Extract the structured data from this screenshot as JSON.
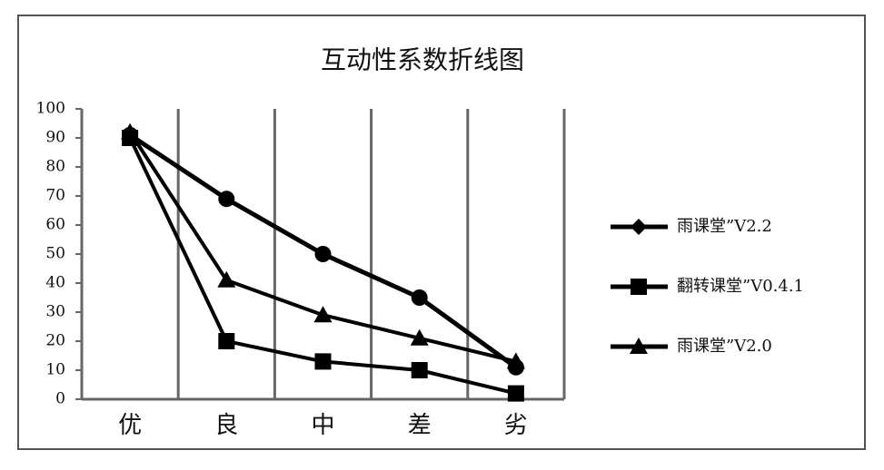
{
  "chart_data": {
    "type": "line",
    "title": "互动性系数折线图",
    "categories": [
      "优",
      "良",
      "中",
      "差",
      "劣"
    ],
    "series": [
      {
        "name": "雨课堂”V2.2",
        "color": "#000000",
        "marker": "circle",
        "values": [
          91,
          69,
          50,
          35,
          11
        ]
      },
      {
        "name": "翻转课堂”V0.4.1",
        "color": "#000000",
        "marker": "square",
        "values": [
          90,
          20,
          13,
          10,
          2
        ]
      },
      {
        "name": "雨课堂”V2.0",
        "color": "#000000",
        "marker": "triangle",
        "values": [
          92,
          41,
          29,
          21,
          13
        ]
      }
    ],
    "ylim": [
      0,
      100
    ],
    "yticks": [
      0,
      10,
      20,
      30,
      40,
      50,
      60,
      70,
      80,
      90,
      100
    ],
    "grid": true,
    "legend": "right"
  }
}
